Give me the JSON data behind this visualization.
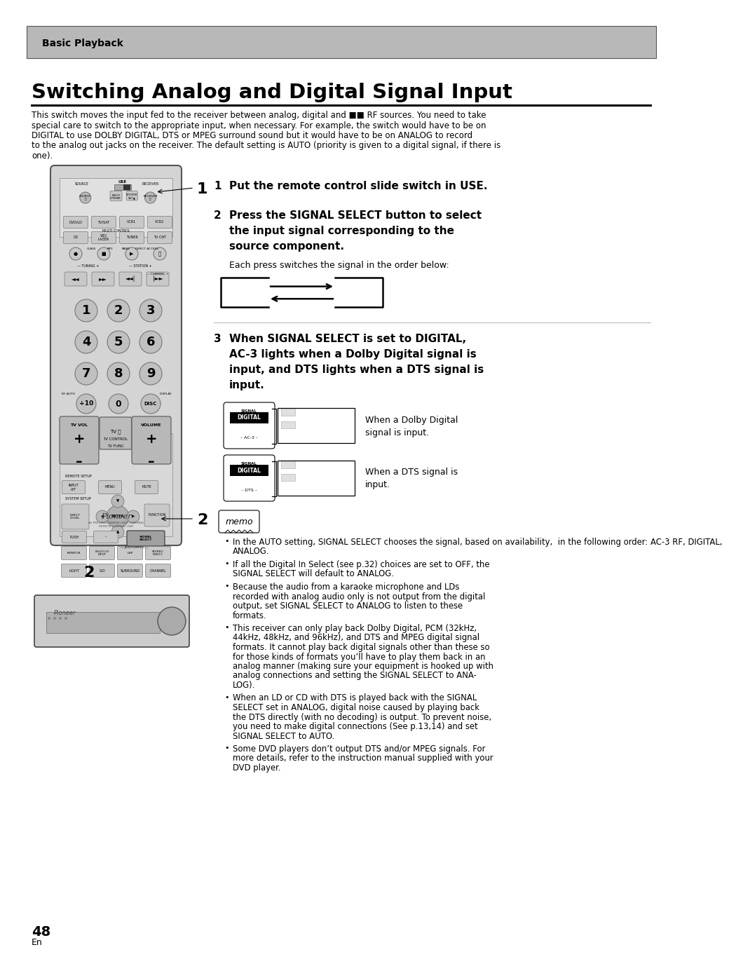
{
  "page_bg": "#ffffff",
  "header_bg": "#b8b8b8",
  "header_text": "Basic Playback",
  "title": "Switching Analog and Digital Signal Input",
  "intro_lines": [
    "This switch moves the input fed to the receiver between analog, digital and ■■ RF sources. You need to take",
    "special care to switch to the appropriate input, when necessary. For example, the switch would have to be on",
    "DIGITAL to use DOLBY DIGITAL, DTS or MPEG surround sound but it would have to be on ANALOG to record",
    "to the analog out jacks on the receiver. The default setting is AUTO (priority is given to a digital signal, if there is",
    "one)."
  ],
  "step1": "Put the remote control slide switch in USE.",
  "step2_lines": [
    "Press the SIGNAL SELECT button to select",
    "the input signal corresponding to the",
    "source component."
  ],
  "step2_sub": "Each press switches the signal in the order below:",
  "step3_lines": [
    "When SIGNAL SELECT is set to DIGITAL,",
    "AC-3 lights when a Dolby Digital signal is",
    "input, and DTS lights when a DTS signal is",
    "input."
  ],
  "dolby_text_l1": "When a Dolby Digital",
  "dolby_text_l2": "signal is input.",
  "dts_text_l1": "When a DTS signal is",
  "dts_text_l2": "input.",
  "memo_label": "memo",
  "bullets": [
    "In the AUTO setting, SIGNAL SELECT chooses the signal, based on availability,  in the following order: AC-3 RF, DIGITAL,\nANALOG.",
    "If all the Digital In Select (see p.32) choices are set to OFF, the\nSIGNAL SELECT will default to ANALOG.",
    "Because the audio from a karaoke microphone and LDs\nrecorded with analog audio only is not output from the digital\noutput, set SIGNAL SELECT to ANALOG to listen to these\nformats.",
    "This receiver can only play back Dolby Digital, PCM (32kHz,\n44kHz, 48kHz, and 96kHz), and DTS and MPEG digital signal\nformats. It cannot play back digital signals other than these so\nfor those kinds of formats you’ll have to play them back in an\nanalog manner (making sure your equipment is hooked up with\nanalog connections and setting the SIGNAL SELECT to ANA-\nLOG).",
    "When an LD or CD with DTS is played back with the SIGNAL\nSELECT set in ANALOG, digital noise caused by playing back\nthe DTS directly (with no decoding) is output. To prevent noise,\nyou need to make digital connections (See p.13,14) and set\nSIGNAL SELECT to AUTO.",
    "Some DVD players don’t output DTS and/or MPEG signals. For\nmore details, refer to the instruction manual supplied with your\nDVD player."
  ],
  "page_num": "48",
  "page_sub": "En",
  "remote_body_color": "#d4d4d4",
  "remote_edge_color": "#555555",
  "remote_btn_color": "#c0c0c0",
  "remote_btn_edge": "#777777"
}
